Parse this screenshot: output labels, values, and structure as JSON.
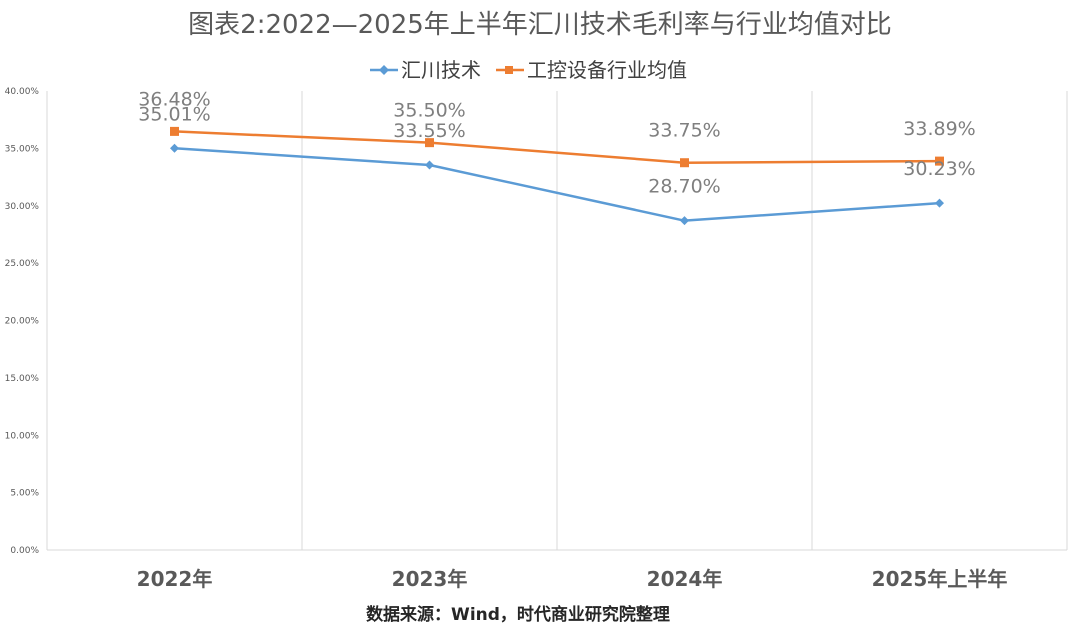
{
  "chart_data": {
    "type": "line",
    "title": "图表2:2022—2025年上半年汇川技术毛利率与行业均值对比",
    "categories": [
      "2022年",
      "2023年",
      "2024年",
      "2025年上半年"
    ],
    "series": [
      {
        "name": "汇川技术",
        "values": [
          35.01,
          33.55,
          28.7,
          30.23
        ],
        "labels": [
          "35.01%",
          "33.55%",
          "28.70%",
          "30.23%"
        ],
        "color": "#5b9bd5",
        "marker": "diamond"
      },
      {
        "name": "工控设备行业均值",
        "values": [
          36.48,
          35.5,
          33.75,
          33.89
        ],
        "labels": [
          "36.48%",
          "35.50%",
          "33.75%",
          "33.89%"
        ],
        "color": "#ed7d31",
        "marker": "square"
      }
    ],
    "yticks": [
      "0.00%",
      "5.00%",
      "10.00%",
      "15.00%",
      "20.00%",
      "25.00%",
      "30.00%",
      "35.00%",
      "40.00%"
    ],
    "ylim": [
      0,
      40
    ],
    "ystep": 5,
    "grid": "vertical",
    "legend_position": "top-center",
    "xlabel": "",
    "ylabel": "",
    "source": "数据来源：Wind，时代商业研究院整理"
  }
}
